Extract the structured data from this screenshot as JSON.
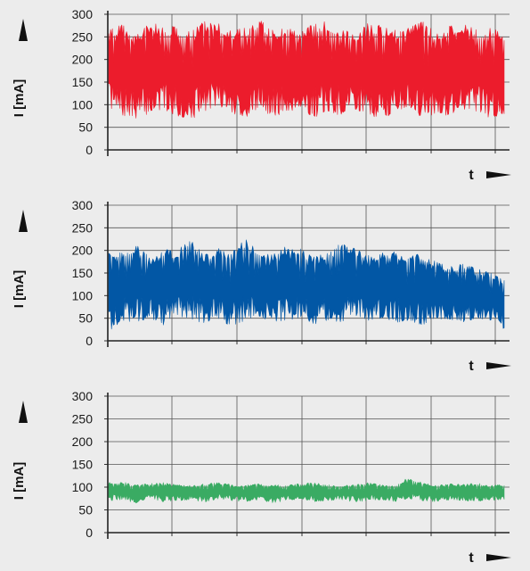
{
  "chart_data": [
    {
      "type": "area",
      "ylabel": "I [mA]",
      "xlabel": "t",
      "yticks": [
        "0",
        "50",
        "100",
        "150",
        "200",
        "250",
        "300"
      ],
      "ylim": [
        0,
        300
      ],
      "grid": true,
      "color": "#ec1c2c",
      "series": [
        {
          "low": [
            95,
            75,
            70,
            80,
            90,
            75,
            65,
            85,
            100,
            80,
            70,
            90,
            75,
            80,
            95,
            70,
            85,
            75,
            90,
            80,
            65,
            85,
            95,
            70,
            80,
            75,
            90,
            85,
            70,
            80
          ],
          "high": [
            265,
            280,
            255,
            290,
            270,
            275,
            260,
            285,
            280,
            265,
            270,
            290,
            265,
            275,
            260,
            280,
            285,
            270,
            255,
            280,
            275,
            265,
            270,
            285,
            260,
            275,
            280,
            265,
            270,
            260
          ]
        }
      ]
    },
    {
      "type": "area",
      "ylabel": "I [mA]",
      "xlabel": "t",
      "yticks": [
        "0",
        "50",
        "100",
        "150",
        "200",
        "250",
        "300"
      ],
      "ylim": [
        0,
        300
      ],
      "grid": true,
      "color": "#0257a5",
      "series": [
        {
          "low": [
            20,
            45,
            40,
            50,
            35,
            55,
            45,
            40,
            50,
            30,
            45,
            55,
            40,
            45,
            50,
            35,
            45,
            40,
            55,
            45,
            50,
            40,
            45,
            35,
            50,
            45,
            40,
            50,
            45,
            25
          ],
          "high": [
            205,
            200,
            215,
            185,
            205,
            195,
            235,
            190,
            205,
            195,
            225,
            205,
            190,
            210,
            205,
            185,
            195,
            215,
            205,
            190,
            195,
            200,
            185,
            195,
            175,
            165,
            170,
            160,
            150,
            135
          ]
        }
      ]
    },
    {
      "type": "area",
      "ylabel": "I [mA]",
      "xlabel": "t",
      "yticks": [
        "0",
        "50",
        "100",
        "150",
        "200",
        "250",
        "300"
      ],
      "ylim": [
        0,
        300
      ],
      "grid": true,
      "color": "#3aab63",
      "series": [
        {
          "low": [
            70,
            72,
            65,
            75,
            68,
            70,
            72,
            66,
            74,
            70,
            68,
            72,
            65,
            70,
            74,
            68,
            70,
            72,
            66,
            70,
            72,
            68,
            74,
            70,
            66,
            72,
            70,
            68,
            72,
            70
          ],
          "high": [
            110,
            112,
            105,
            108,
            110,
            106,
            104,
            108,
            110,
            106,
            104,
            108,
            106,
            104,
            108,
            110,
            106,
            104,
            108,
            110,
            106,
            104,
            122,
            110,
            104,
            108,
            106,
            110,
            104,
            106
          ]
        }
      ]
    }
  ]
}
